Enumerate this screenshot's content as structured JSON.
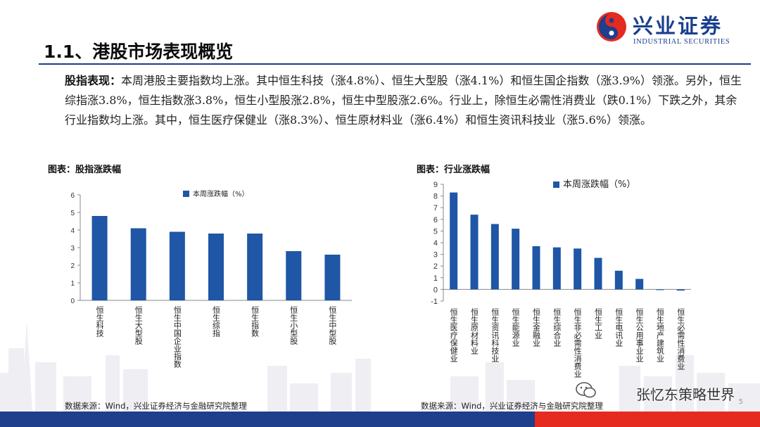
{
  "header": {
    "logo_cn": "兴业证券",
    "logo_en": "INDUSTRIAL SECURITIES",
    "title": "1.1、港股市场表现概览"
  },
  "summary": {
    "lead": "股指表现：",
    "text": "本周港股主要指数均上涨。其中恒生科技（涨4.8%）、恒生大型股（涨4.1%）和恒生国企指数（涨3.9%）领涨。另外，恒生综指涨3.8%，恒生指数涨3.8%，恒生小型股涨2.8%，恒生中型股涨2.6%。行业上，除恒生必需性消费业（跌0.1%）下跌之外，其余行业指数均上涨。其中，恒生医疗保健业（涨8.3%）、恒生原材料业（涨6.4%）和恒生资讯科技业（涨5.6%）领涨。"
  },
  "left_chart": {
    "caption": "图表：股指涨跌幅",
    "source": "数据来源：Wind，兴业证券经济与金融研究院整理"
  },
  "right_chart": {
    "caption": "图表：行业涨跌幅",
    "source": "数据来源：Wind，兴业证券经济与金融研究院整理"
  },
  "footer": {
    "watermark": "张忆东策略世界",
    "page_number": "5",
    "colors": {
      "blue": "#1f3e8c",
      "red": "#e52a20"
    }
  },
  "chart_data": [
    {
      "type": "bar",
      "categories": [
        "恒生科技",
        "恒生大型股",
        "恒生中国企业指数",
        "恒生综指",
        "恒生指数",
        "恒生小型股",
        "恒生中型股"
      ],
      "series": [
        {
          "name": "本周涨跌幅（%）",
          "values": [
            4.8,
            4.1,
            3.9,
            3.8,
            3.8,
            2.8,
            2.6
          ]
        }
      ],
      "yticks": [
        0,
        1,
        2,
        3,
        4,
        5,
        6
      ],
      "ylim": [
        0,
        6
      ],
      "grid": false,
      "legend": "top",
      "color": "#1f56a5"
    },
    {
      "type": "bar",
      "categories": [
        "恒生医疗保健业",
        "恒生原材料业",
        "恒生资讯科技业",
        "恒生能源业",
        "恒生金融业",
        "恒生综合业",
        "恒生非必需性消费业",
        "恒生工业",
        "恒生电讯业",
        "恒生公用事业业",
        "恒生地产建筑业",
        "恒生必需性消费业"
      ],
      "series": [
        {
          "name": "本周涨跌幅（%）",
          "values": [
            8.3,
            6.4,
            5.6,
            5.2,
            3.7,
            3.6,
            3.5,
            2.7,
            1.6,
            0.9,
            0.0,
            -0.1
          ]
        }
      ],
      "yticks": [
        -1,
        0,
        1,
        2,
        3,
        4,
        5,
        6,
        7,
        8,
        9
      ],
      "ylim": [
        -1,
        9
      ],
      "grid": false,
      "legend": "top",
      "color": "#1f56a5"
    }
  ]
}
